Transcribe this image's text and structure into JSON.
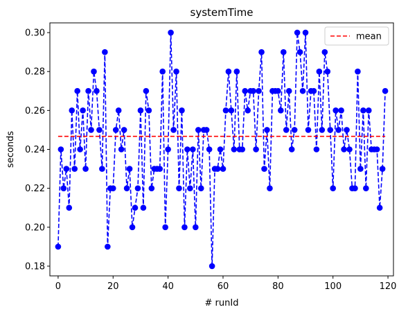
{
  "chart_data": {
    "type": "line",
    "title": "systemTime",
    "xlabel": "# runId",
    "ylabel": "seconds",
    "xlim": [
      -3,
      122
    ],
    "ylim": [
      0.175,
      0.305
    ],
    "xticks": [
      0,
      20,
      40,
      60,
      80,
      100,
      120
    ],
    "yticks": [
      0.18,
      0.2,
      0.22,
      0.24,
      0.26,
      0.28,
      0.3
    ],
    "ytick_labels": [
      "0.18",
      "0.20",
      "0.22",
      "0.24",
      "0.26",
      "0.28",
      "0.30"
    ],
    "grid": false,
    "legend": {
      "position": "top-right",
      "entries": [
        "mean"
      ]
    },
    "series": [
      {
        "style": "dashed line with circle markers",
        "color": "#0000ff",
        "x": [
          0,
          1,
          2,
          3,
          4,
          5,
          6,
          7,
          8,
          9,
          10,
          11,
          12,
          13,
          14,
          15,
          16,
          17,
          18,
          19,
          20,
          21,
          22,
          23,
          24,
          25,
          26,
          27,
          28,
          29,
          30,
          31,
          32,
          33,
          34,
          35,
          36,
          37,
          38,
          39,
          40,
          41,
          42,
          43,
          44,
          45,
          46,
          47,
          48,
          49,
          50,
          51,
          52,
          53,
          54,
          55,
          56,
          57,
          58,
          59,
          60,
          61,
          62,
          63,
          64,
          65,
          66,
          67,
          68,
          69,
          70,
          71,
          72,
          73,
          74,
          75,
          76,
          77,
          78,
          79,
          80,
          81,
          82,
          83,
          84,
          85,
          86,
          87,
          88,
          89,
          90,
          91,
          92,
          93,
          94,
          95,
          96,
          97,
          98,
          99,
          100,
          101,
          102,
          103,
          104,
          105,
          106,
          107,
          108,
          109,
          110,
          111,
          112,
          113,
          114,
          115,
          116,
          117,
          118,
          119
        ],
        "values": [
          0.19,
          0.24,
          0.22,
          0.23,
          0.21,
          0.26,
          0.23,
          0.27,
          0.24,
          0.26,
          0.23,
          0.27,
          0.25,
          0.28,
          0.27,
          0.25,
          0.23,
          0.29,
          0.19,
          0.22,
          0.22,
          0.25,
          0.26,
          0.24,
          0.25,
          0.22,
          0.23,
          0.2,
          0.21,
          0.22,
          0.26,
          0.21,
          0.27,
          0.26,
          0.22,
          0.23,
          0.23,
          0.23,
          0.28,
          0.2,
          0.24,
          0.3,
          0.25,
          0.28,
          0.22,
          0.26,
          0.2,
          0.24,
          0.22,
          0.24,
          0.2,
          0.25,
          0.22,
          0.25,
          0.25,
          0.24,
          0.18,
          0.23,
          0.23,
          0.24,
          0.23,
          0.26,
          0.28,
          0.26,
          0.24,
          0.28,
          0.24,
          0.24,
          0.27,
          0.26,
          0.27,
          0.27,
          0.24,
          0.27,
          0.29,
          0.23,
          0.25,
          0.22,
          0.27,
          0.27,
          0.27,
          0.26,
          0.29,
          0.25,
          0.27,
          0.24,
          0.25,
          0.3,
          0.29,
          0.27,
          0.3,
          0.25,
          0.27,
          0.27,
          0.24,
          0.28,
          0.25,
          0.29,
          0.28,
          0.25,
          0.22,
          0.26,
          0.25,
          0.26,
          0.24,
          0.25,
          0.24,
          0.22,
          0.22,
          0.28,
          0.23,
          0.26,
          0.22,
          0.26,
          0.24,
          0.24,
          0.24,
          0.21,
          0.23,
          0.27
        ]
      },
      {
        "name": "mean",
        "style": "dashed line",
        "color": "#ff0000",
        "x": [
          0,
          119
        ],
        "values": [
          0.2467,
          0.2467
        ]
      }
    ]
  }
}
